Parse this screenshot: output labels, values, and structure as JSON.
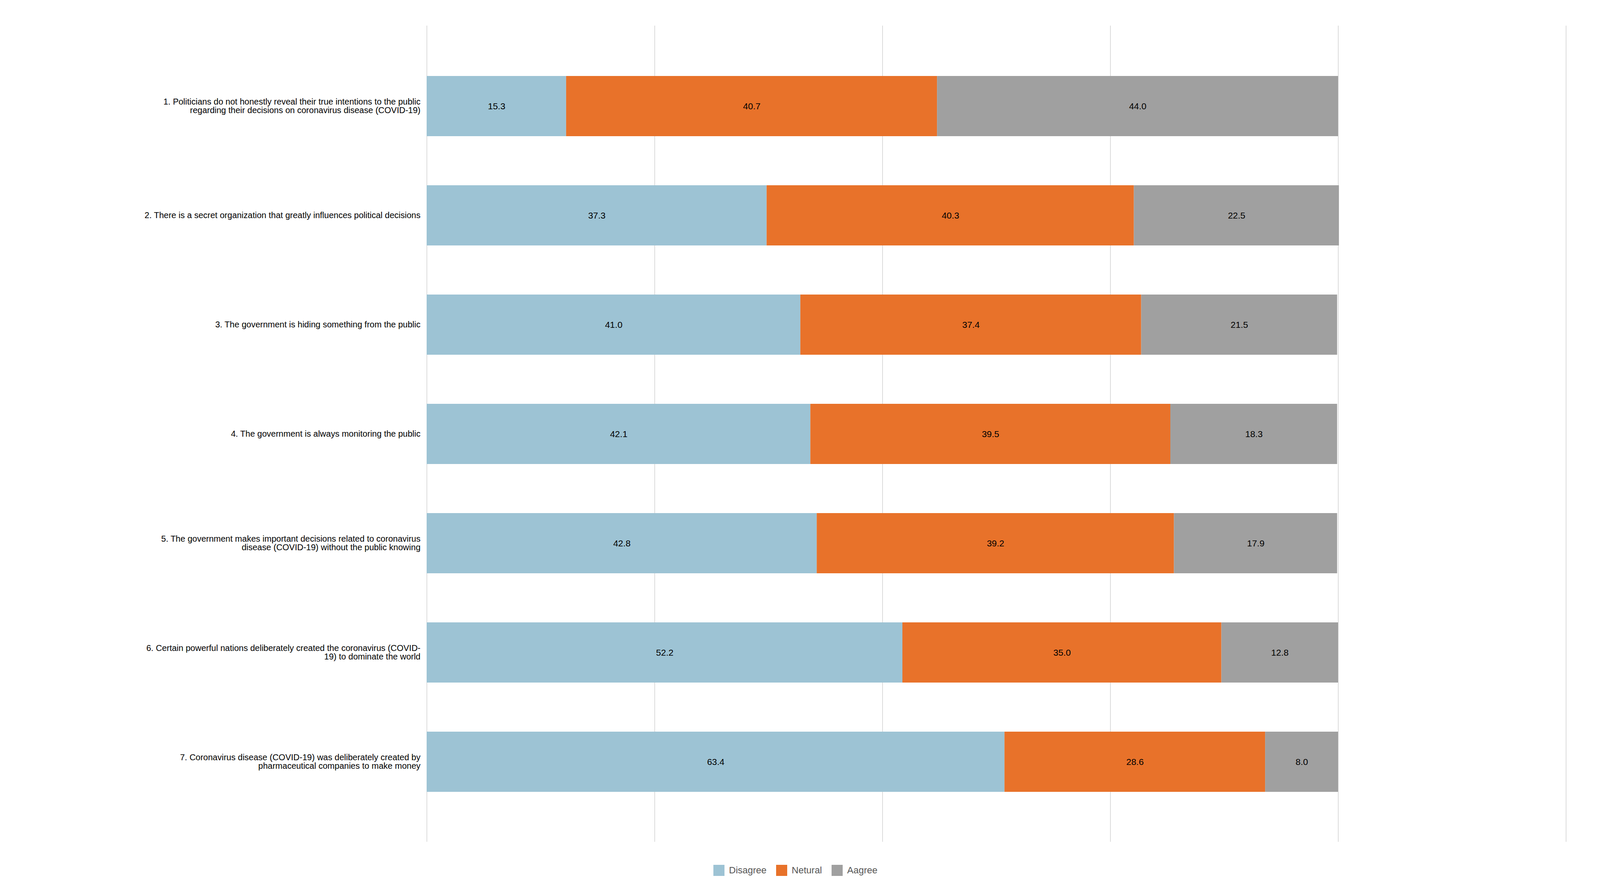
{
  "chart_data": {
    "type": "bar",
    "orientation": "horizontal",
    "stacked": true,
    "categories": [
      "1. Politicians do not honestly reveal their true intentions to the public\nregarding their decisions on coronavirus disease (COVID-19)",
      "2. There is a secret organization that greatly influences political decisions",
      "3. The government is hiding something from the public",
      "4. The government is always monitoring the public",
      "5. The government makes important decisions related to coronavirus\ndisease (COVID-19) without the public knowing",
      "6. Certain powerful nations deliberately created the coronavirus (COVID-\n19) to dominate the world",
      "7. Coronavirus disease (COVID-19) was deliberately created by\npharmaceutical companies to make money"
    ],
    "series": [
      {
        "name": "Disagree",
        "color": "#9DC3D4",
        "values": [
          15.3,
          37.3,
          41.0,
          42.1,
          42.8,
          52.2,
          63.4
        ],
        "value_labels": [
          "15.3",
          "37.3",
          "41.0",
          "42.1",
          "42.8",
          "52.2",
          "63.4"
        ]
      },
      {
        "name": "Netural",
        "color": "#E8722A",
        "values": [
          40.7,
          40.3,
          37.4,
          39.5,
          39.2,
          35.0,
          28.6
        ],
        "value_labels": [
          "40.7",
          "40.3",
          "37.4",
          "39.5",
          "39.2",
          "35.0",
          "28.6"
        ]
      },
      {
        "name": "Aagree",
        "color": "#A0A0A0",
        "values": [
          44.0,
          22.5,
          21.5,
          18.3,
          17.9,
          12.8,
          8.0
        ],
        "value_labels": [
          "44.0",
          "22.5",
          "21.5",
          "18.3",
          "17.9",
          "12.8",
          "8.0"
        ]
      }
    ],
    "xlim": [
      0,
      125
    ],
    "xticks": [
      0,
      25,
      50,
      75,
      100,
      125
    ],
    "grid": true,
    "data_labels": true,
    "tick_labels": "y",
    "legend": "bottom"
  }
}
